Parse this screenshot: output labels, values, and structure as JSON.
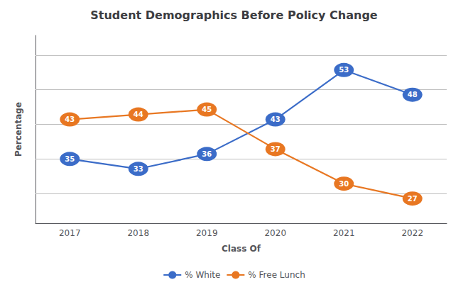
{
  "chart_data": {
    "type": "line",
    "title": "Student Demographics Before Policy Change",
    "xlabel": "Class Of",
    "ylabel": "Percentage",
    "categories": [
      "2017",
      "2018",
      "2019",
      "2020",
      "2021",
      "2022"
    ],
    "series": [
      {
        "name": "% White",
        "color": "#3B6CC8",
        "values": [
          35,
          33,
          36,
          43,
          53,
          48
        ]
      },
      {
        "name": "% Free Lunch",
        "color": "#E87722",
        "values": [
          43,
          44,
          45,
          37,
          30,
          27
        ]
      }
    ],
    "ylim": [
      22,
      60
    ],
    "yticks": [
      28,
      35,
      42,
      49,
      56
    ],
    "grid": true,
    "tick_labels": "x",
    "data_labels": true,
    "legend": "bottom",
    "marker": "circle"
  }
}
